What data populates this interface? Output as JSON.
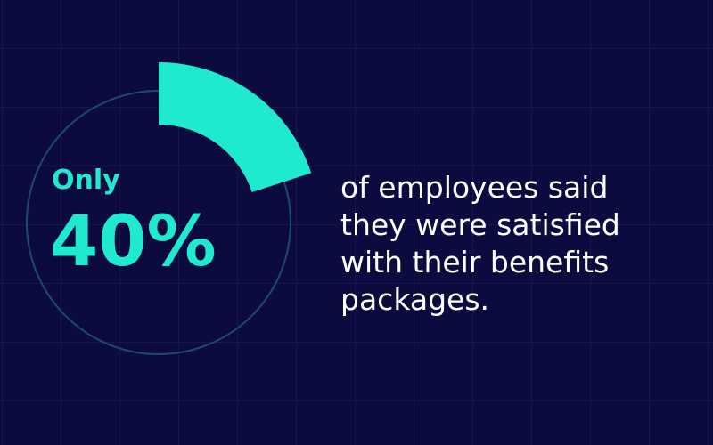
{
  "badge": {
    "prefix": "Only",
    "value": "40%"
  },
  "statement": {
    "lines": [
      "of employees said",
      "they were satisfied",
      "with their benefits",
      "packages."
    ]
  }
}
